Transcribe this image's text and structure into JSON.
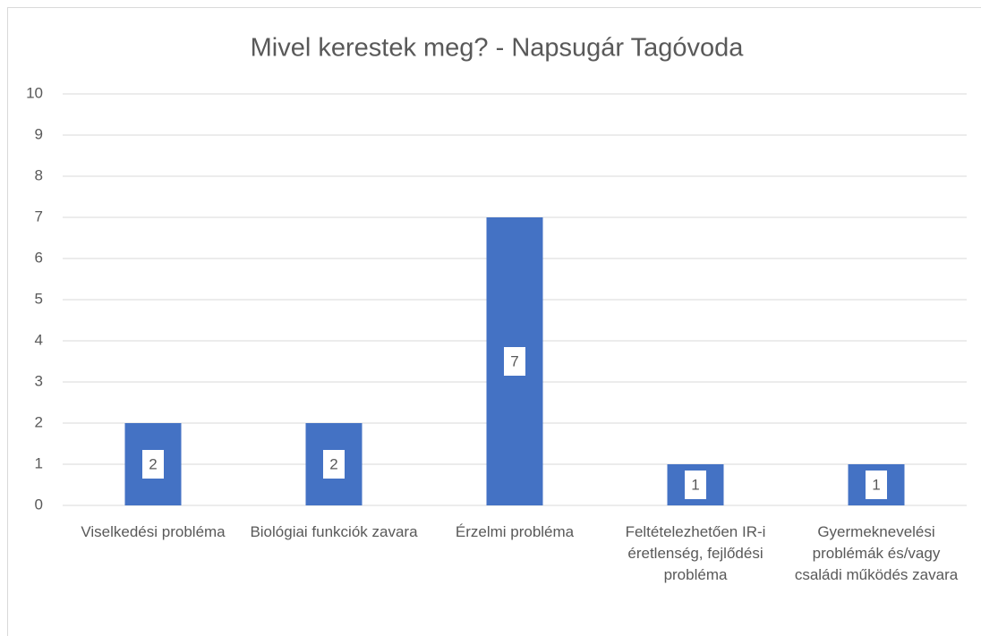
{
  "chart_data": {
    "type": "bar",
    "title": "Mivel kerestek meg? - Napsugár Tagóvoda",
    "categories": [
      "Viselkedési probléma",
      "Biológiai funkciók zavara",
      "Érzelmi probléma",
      "Feltételezhetően IR-i éretlenség, fejlődési probléma",
      "Gyermeknevelési problémák és/vagy családi működés zavara"
    ],
    "values": [
      2,
      2,
      7,
      1,
      1
    ],
    "color": "#4472c4",
    "ylim": [
      0,
      10
    ],
    "yticks": [
      0,
      1,
      2,
      3,
      4,
      5,
      6,
      7,
      8,
      9,
      10
    ],
    "grid": true
  }
}
